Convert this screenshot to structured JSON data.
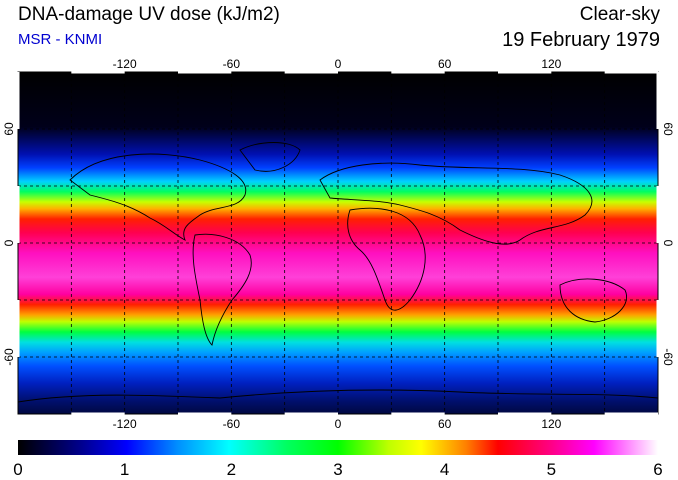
{
  "header": {
    "title": "DNA-damage UV dose (kJ/m2)",
    "subtitle": "MSR - KNMI",
    "sky_condition": "Clear-sky",
    "date": "19 February 1979"
  },
  "map": {
    "projection": "equirectangular",
    "lon_range": [
      -180,
      180
    ],
    "lat_range": [
      -90,
      90
    ],
    "lon_ticks": [
      -120,
      -60,
      0,
      60,
      120
    ],
    "lon_tick_labels": [
      "-120",
      "-60",
      "0",
      "60",
      "120"
    ],
    "lat_ticks": [
      60,
      0,
      -60
    ],
    "lat_tick_labels": [
      "60",
      "0",
      "-60"
    ],
    "grid": "dashed, every 30 degrees"
  },
  "colorbar": {
    "min": 0,
    "max": 6,
    "tick_labels": [
      "0",
      "1",
      "2",
      "3",
      "4",
      "5",
      "6"
    ],
    "colors": [
      "#000000",
      "#0000ff",
      "#00ffff",
      "#00ff00",
      "#ffff00",
      "#ff0000",
      "#ff00ff",
      "#ffffff"
    ]
  }
}
